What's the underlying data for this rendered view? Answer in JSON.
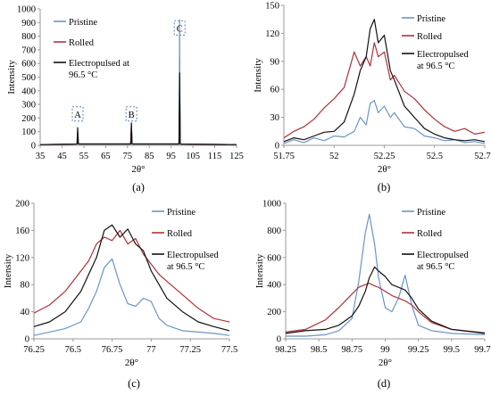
{
  "colors": {
    "pristine": "#6a95c8",
    "rolled": "#b0303a",
    "electropulsed": "#111111",
    "axis": "#9a9a9a",
    "text": "#000000"
  },
  "chart_data": [
    {
      "id": "a",
      "panel_label": "(a)",
      "type": "line",
      "xlabel": "2θ°",
      "ylabel": "Intensity",
      "xlim": [
        35,
        125
      ],
      "ylim": [
        0,
        1000
      ],
      "xticks": [
        35,
        45,
        55,
        65,
        75,
        85,
        95,
        105,
        115,
        125
      ],
      "yticks": [
        0,
        100,
        200,
        300,
        400,
        500,
        600,
        700,
        800,
        900,
        1000
      ],
      "legend": {
        "placement": "top-left-inside",
        "entries": [
          "Pristine",
          "Rolled",
          "Electropulsed at 96.5 °C"
        ]
      },
      "annotations": [
        {
          "text": "A",
          "x": 52.2,
          "y": 230
        },
        {
          "text": "B",
          "x": 76.8,
          "y": 230
        },
        {
          "text": "C",
          "x": 98.9,
          "y": 860
        }
      ],
      "series": [
        {
          "name": "Pristine",
          "x": [
            35,
            51.9,
            52.2,
            52.5,
            76.5,
            76.8,
            77.1,
            98.6,
            98.85,
            98.9,
            98.95,
            99.2,
            125
          ],
          "y": [
            5,
            10,
            45,
            10,
            10,
            120,
            10,
            10,
            700,
            920,
            700,
            10,
            5
          ]
        },
        {
          "name": "Rolled",
          "x": [
            35,
            51.9,
            52.2,
            52.5,
            76.5,
            76.8,
            77.1,
            98.6,
            98.9,
            99.2,
            125
          ],
          "y": [
            5,
            10,
            100,
            10,
            10,
            150,
            10,
            10,
            400,
            10,
            5
          ]
        },
        {
          "name": "Electropulsed at 96.5 °C",
          "x": [
            35,
            51.9,
            52.2,
            52.5,
            76.5,
            76.8,
            77.1,
            98.6,
            98.85,
            98.9,
            98.95,
            99.2,
            125
          ],
          "y": [
            5,
            10,
            130,
            10,
            10,
            165,
            10,
            10,
            420,
            530,
            420,
            10,
            5
          ]
        }
      ]
    },
    {
      "id": "b",
      "panel_label": "(b)",
      "type": "line",
      "xlabel": "2θ°",
      "ylabel": "Intensity",
      "xlim": [
        51.75,
        52.75
      ],
      "ylim": [
        0,
        150
      ],
      "xticks": [
        51.75,
        52,
        52.25,
        52.5,
        52.75
      ],
      "xtick_labels": [
        "51.75",
        "52",
        "52.25",
        "52.5",
        "52.75"
      ],
      "yticks": [
        0,
        30,
        60,
        90,
        120,
        150
      ],
      "legend": {
        "placement": "top-right-inside",
        "entries": [
          "Pristine",
          "Rolled",
          "Electropulsed at 96.5 °C"
        ]
      },
      "series": [
        {
          "name": "Pristine",
          "x": [
            51.75,
            51.8,
            51.85,
            51.9,
            51.95,
            52.0,
            52.05,
            52.1,
            52.13,
            52.16,
            52.18,
            52.2,
            52.22,
            52.25,
            52.28,
            52.3,
            52.35,
            52.4,
            52.45,
            52.5,
            52.55,
            52.6,
            52.65,
            52.7,
            52.75
          ],
          "y": [
            2,
            6,
            3,
            8,
            5,
            10,
            9,
            15,
            30,
            22,
            45,
            48,
            35,
            42,
            30,
            35,
            20,
            18,
            10,
            8,
            5,
            6,
            3,
            4,
            2
          ]
        },
        {
          "name": "Rolled",
          "x": [
            51.75,
            51.8,
            51.85,
            51.9,
            51.95,
            52.0,
            52.05,
            52.1,
            52.13,
            52.16,
            52.18,
            52.2,
            52.22,
            52.25,
            52.28,
            52.3,
            52.35,
            52.4,
            52.45,
            52.5,
            52.55,
            52.6,
            52.65,
            52.7,
            52.75
          ],
          "y": [
            8,
            15,
            20,
            28,
            40,
            50,
            62,
            100,
            85,
            95,
            85,
            110,
            95,
            100,
            70,
            75,
            58,
            50,
            38,
            28,
            20,
            15,
            18,
            12,
            14
          ]
        },
        {
          "name": "Electropulsed at 96.5 °C",
          "x": [
            51.75,
            51.8,
            51.85,
            51.9,
            51.95,
            52.0,
            52.05,
            52.1,
            52.13,
            52.16,
            52.18,
            52.2,
            52.22,
            52.25,
            52.28,
            52.3,
            52.35,
            52.4,
            52.45,
            52.5,
            52.55,
            52.6,
            52.65,
            52.7,
            52.75
          ],
          "y": [
            4,
            8,
            6,
            10,
            14,
            15,
            25,
            55,
            80,
            95,
            125,
            135,
            110,
            118,
            80,
            70,
            42,
            30,
            18,
            12,
            8,
            6,
            5,
            6,
            4
          ]
        }
      ]
    },
    {
      "id": "c",
      "panel_label": "(c)",
      "type": "line",
      "xlabel": "2θ°",
      "ylabel": "Intensity",
      "xlim": [
        76.25,
        77.5
      ],
      "ylim": [
        0,
        200
      ],
      "xticks": [
        76.25,
        76.5,
        76.75,
        77,
        77.25,
        77.5
      ],
      "xtick_labels": [
        "76.25",
        "76.5",
        "76.75",
        "77",
        "77.25",
        "77.5"
      ],
      "yticks": [
        0,
        40,
        80,
        120,
        160,
        200
      ],
      "legend": {
        "placement": "top-right-inside",
        "entries": [
          "Pristine",
          "Rolled",
          "Electropulsed at 96.5 °C"
        ]
      },
      "series": [
        {
          "name": "Pristine",
          "x": [
            76.25,
            76.35,
            76.45,
            76.55,
            76.6,
            76.65,
            76.7,
            76.75,
            76.8,
            76.85,
            76.9,
            76.95,
            77.0,
            77.05,
            77.1,
            77.2,
            77.3,
            77.4,
            77.5
          ],
          "y": [
            5,
            10,
            15,
            25,
            45,
            70,
            105,
            118,
            80,
            52,
            48,
            60,
            55,
            30,
            20,
            12,
            10,
            8,
            5
          ]
        },
        {
          "name": "Rolled",
          "x": [
            76.25,
            76.35,
            76.45,
            76.55,
            76.6,
            76.65,
            76.7,
            76.75,
            76.8,
            76.85,
            76.9,
            76.95,
            77.0,
            77.05,
            77.1,
            77.2,
            77.3,
            77.4,
            77.5
          ],
          "y": [
            38,
            50,
            70,
            100,
            115,
            140,
            150,
            145,
            160,
            140,
            148,
            125,
            110,
            95,
            85,
            65,
            45,
            30,
            25
          ]
        },
        {
          "name": "Electropulsed at 96.5 °C",
          "x": [
            76.25,
            76.35,
            76.45,
            76.55,
            76.6,
            76.65,
            76.7,
            76.75,
            76.8,
            76.85,
            76.9,
            76.95,
            77.0,
            77.05,
            77.1,
            77.2,
            77.3,
            77.4,
            77.5
          ],
          "y": [
            18,
            25,
            40,
            70,
            95,
            120,
            160,
            168,
            150,
            162,
            140,
            130,
            100,
            80,
            60,
            40,
            25,
            18,
            12
          ]
        }
      ]
    },
    {
      "id": "d",
      "panel_label": "(d)",
      "type": "line",
      "xlabel": "2θ°",
      "ylabel": "Intensity",
      "xlim": [
        98.25,
        99.75
      ],
      "ylim": [
        0,
        1000
      ],
      "xticks": [
        98.25,
        98.5,
        98.75,
        99,
        99.25,
        99.5,
        99.75
      ],
      "xtick_labels": [
        "98.25",
        "98.5",
        "98.75",
        "99",
        "99.25",
        "99.5",
        "99.75"
      ],
      "yticks": [
        0,
        200,
        400,
        600,
        800,
        1000
      ],
      "legend": {
        "placement": "top-right-inside",
        "entries": [
          "Pristine",
          "Rolled",
          "Electropulsed at 96.5 °C"
        ]
      },
      "series": [
        {
          "name": "Pristine",
          "x": [
            98.25,
            98.4,
            98.55,
            98.65,
            98.75,
            98.8,
            98.85,
            98.88,
            98.92,
            98.95,
            99.0,
            99.05,
            99.1,
            99.15,
            99.2,
            99.25,
            99.35,
            99.5,
            99.75
          ],
          "y": [
            20,
            20,
            30,
            60,
            150,
            420,
            780,
            920,
            700,
            450,
            230,
            200,
            300,
            470,
            250,
            100,
            60,
            40,
            30
          ]
        },
        {
          "name": "Rolled",
          "x": [
            98.25,
            98.4,
            98.55,
            98.65,
            98.75,
            98.8,
            98.85,
            98.88,
            98.92,
            98.95,
            99.0,
            99.05,
            99.1,
            99.15,
            99.2,
            99.25,
            99.35,
            99.5,
            99.75
          ],
          "y": [
            50,
            70,
            140,
            230,
            330,
            380,
            400,
            410,
            390,
            380,
            350,
            320,
            300,
            280,
            250,
            200,
            120,
            70,
            45
          ]
        },
        {
          "name": "Electropulsed at 96.5 °C",
          "x": [
            98.25,
            98.4,
            98.55,
            98.65,
            98.75,
            98.8,
            98.85,
            98.88,
            98.92,
            98.95,
            99.0,
            99.05,
            99.1,
            99.15,
            99.2,
            99.25,
            99.35,
            99.5,
            99.75
          ],
          "y": [
            40,
            60,
            70,
            100,
            170,
            240,
            350,
            450,
            530,
            500,
            460,
            400,
            380,
            360,
            300,
            220,
            130,
            70,
            40
          ]
        }
      ]
    }
  ]
}
